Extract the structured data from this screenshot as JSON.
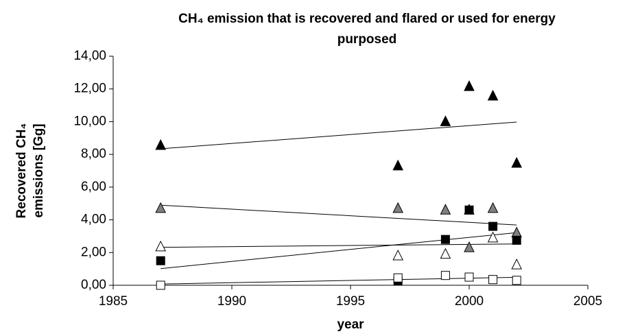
{
  "chart_data": {
    "type": "scatter",
    "title": [
      "CH₄ emission that is recovered and flared or used for energy",
      "purposed"
    ],
    "x_label": "year",
    "y_label": [
      "Recovered CH₄",
      "emissions [Gg]"
    ],
    "xlim": [
      1985,
      2005
    ],
    "xticks": [
      1985,
      1990,
      1995,
      2000,
      2005
    ],
    "ylim": [
      0,
      14
    ],
    "yticks": [
      {
        "value": 0,
        "label": "0,00"
      },
      {
        "value": 2,
        "label": "2,00"
      },
      {
        "value": 4,
        "label": "4,00"
      },
      {
        "value": 6,
        "label": "6,00"
      },
      {
        "value": 8,
        "label": "8,00"
      },
      {
        "value": 10,
        "label": "10,00"
      },
      {
        "value": 12,
        "label": "12,00"
      },
      {
        "value": 14,
        "label": "14,00"
      }
    ],
    "trendline": true,
    "series": [
      {
        "marker": "triangle",
        "color": "#000000",
        "x": [
          1987,
          1997,
          1999,
          2000,
          2001,
          2002
        ],
        "values": [
          8.55,
          7.3,
          10.0,
          12.15,
          11.57,
          7.46
        ]
      },
      {
        "marker": "triangle",
        "color": "#808080",
        "x": [
          1987,
          1997,
          1999,
          2000,
          2001,
          2002
        ],
        "values": [
          4.7,
          4.7,
          4.6,
          2.3,
          4.7,
          3.2
        ]
      },
      {
        "marker": "triangle",
        "color": "#ffffff",
        "x": [
          1987,
          1997,
          1999,
          2000,
          2001,
          2002
        ],
        "values": [
          2.35,
          1.8,
          1.9,
          4.6,
          2.9,
          1.25
        ]
      },
      {
        "marker": "square",
        "color": "#000000",
        "x": [
          1987,
          1997,
          1999,
          2000,
          2001,
          2002
        ],
        "values": [
          1.5,
          0.25,
          2.8,
          4.6,
          3.6,
          2.75
        ]
      },
      {
        "marker": "square",
        "color": "#ffffff",
        "x": [
          1987,
          1997,
          1999,
          2000,
          2001,
          2002
        ],
        "values": [
          0,
          0.45,
          0.6,
          0.5,
          0.35,
          0.3
        ]
      }
    ]
  }
}
